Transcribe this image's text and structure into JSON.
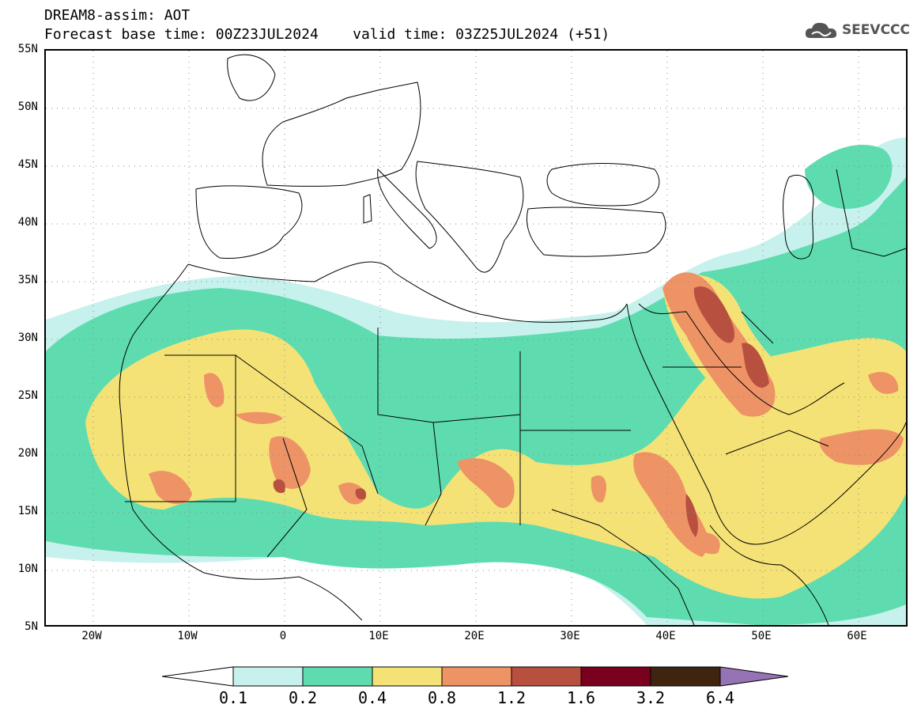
{
  "header": {
    "line1": "DREAM8-assim: AOT",
    "line2": "Forecast base time: 00Z23JUL2024    valid time: 03Z25JUL2024 (+51)"
  },
  "logo": {
    "text": "SEEVCCC",
    "icon": "cloud-icon"
  },
  "map": {
    "lat_labels": [
      "55N",
      "50N",
      "45N",
      "40N",
      "35N",
      "30N",
      "25N",
      "20N",
      "15N",
      "10N",
      "5N"
    ],
    "lon_labels": [
      "20W",
      "10W",
      "0",
      "10E",
      "20E",
      "30E",
      "40E",
      "50E",
      "60E"
    ],
    "lat_range": [
      5,
      55
    ],
    "lon_range": [
      -25,
      65
    ],
    "grid": "dotted"
  },
  "legend": {
    "labels": [
      "0.1",
      "0.2",
      "0.4",
      "0.8",
      "1.2",
      "1.6",
      "3.2",
      "6.4"
    ],
    "colors": [
      "#ffffff",
      "#c7f1ec",
      "#5edcb0",
      "#f5e276",
      "#ee9366",
      "#b85040",
      "#7a0020",
      "#3f2510",
      "#9673b4"
    ]
  }
}
